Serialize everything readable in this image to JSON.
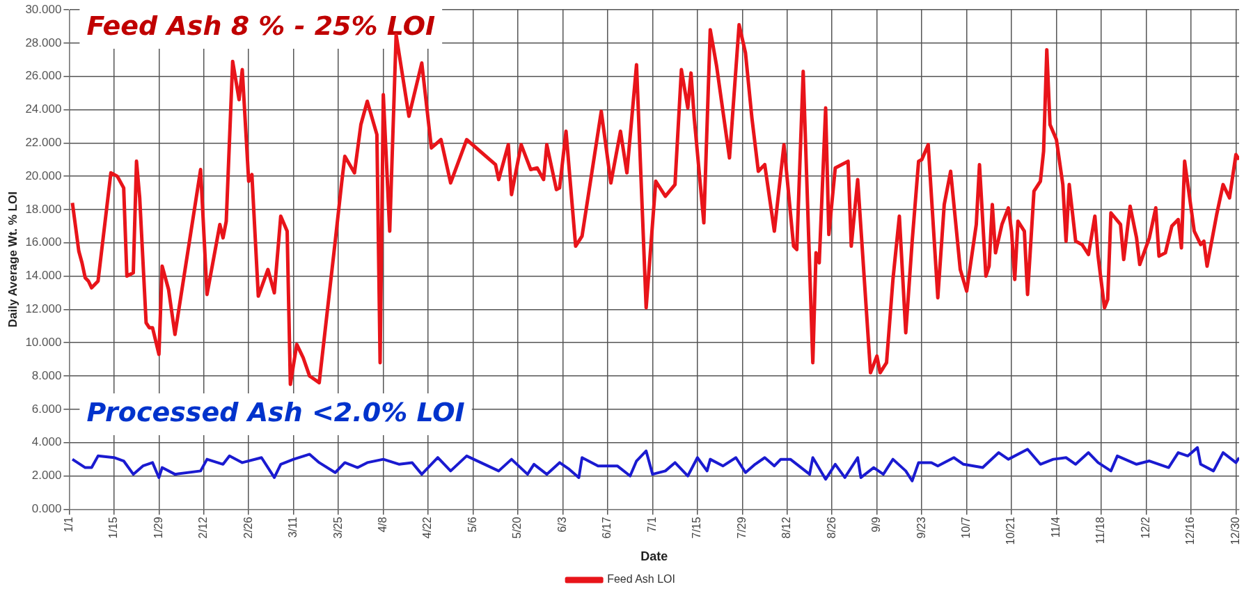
{
  "chart_data": {
    "type": "line",
    "xlabel": "Date",
    "ylabel": "Daily Average Wt. % LOI",
    "annotations": [
      "Feed Ash 8 % - 25% LOI",
      "Processed Ash <2.0% LOI"
    ],
    "xlim": [
      "--01-01",
      "--12-31"
    ],
    "xticks": [
      {
        "value": "--01-01",
        "label": "1/1"
      },
      {
        "value": "--01-15",
        "label": "1/15"
      },
      {
        "value": "--01-29",
        "label": "1/29"
      },
      {
        "value": "--02-12",
        "label": "2/12"
      },
      {
        "value": "--02-26",
        "label": "2/26"
      },
      {
        "value": "--03-11",
        "label": "3/11"
      },
      {
        "value": "--03-25",
        "label": "3/25"
      },
      {
        "value": "--04-08",
        "label": "4/8"
      },
      {
        "value": "--04-22",
        "label": "4/22"
      },
      {
        "value": "--05-06",
        "label": "5/6"
      },
      {
        "value": "--05-20",
        "label": "5/20"
      },
      {
        "value": "--06-03",
        "label": "6/3"
      },
      {
        "value": "--06-17",
        "label": "6/17"
      },
      {
        "value": "--07-01",
        "label": "7/1"
      },
      {
        "value": "--07-15",
        "label": "7/15"
      },
      {
        "value": "--07-29",
        "label": "7/29"
      },
      {
        "value": "--08-12",
        "label": "8/12"
      },
      {
        "value": "--08-26",
        "label": "8/26"
      },
      {
        "value": "--09-09",
        "label": "9/9"
      },
      {
        "value": "--09-23",
        "label": "9/23"
      },
      {
        "value": "--10-07",
        "label": "10/7"
      },
      {
        "value": "--10-21",
        "label": "10/21"
      },
      {
        "value": "--11-04",
        "label": "11/4"
      },
      {
        "value": "--11-18",
        "label": "11/18"
      },
      {
        "value": "--12-02",
        "label": "12/2"
      },
      {
        "value": "--12-16",
        "label": "12/16"
      },
      {
        "value": "--12-30",
        "label": "12/30"
      }
    ],
    "ylim": [
      0,
      30
    ],
    "yticks": [
      {
        "value": 0,
        "label": "0.000"
      },
      {
        "value": 2,
        "label": "2.000"
      },
      {
        "value": 4,
        "label": "4.000"
      },
      {
        "value": 6,
        "label": "6.000"
      },
      {
        "value": 8,
        "label": "8.000"
      },
      {
        "value": 10,
        "label": "10.000"
      },
      {
        "value": 12,
        "label": "12.000"
      },
      {
        "value": 14,
        "label": "14.000"
      },
      {
        "value": 16,
        "label": "16.000"
      },
      {
        "value": 18,
        "label": "18.000"
      },
      {
        "value": 20,
        "label": "20.000"
      },
      {
        "value": 22,
        "label": "22.000"
      },
      {
        "value": 24,
        "label": "24.000"
      },
      {
        "value": 26,
        "label": "26.000"
      },
      {
        "value": 28,
        "label": "28.000"
      },
      {
        "value": 30,
        "label": "30.000"
      }
    ],
    "grid": true,
    "legend": "bottom",
    "marker": "none",
    "line_style": "solid",
    "series": [
      {
        "name": "Feed Ash LOI",
        "color": "#e8141a",
        "x": [
          "--01-02",
          "--01-04",
          "--01-05",
          "--01-06",
          "--01-07",
          "--01-08",
          "--01-10",
          "--01-14",
          "--01-16",
          "--01-18",
          "--01-19",
          "--01-21",
          "--01-22",
          "--01-23",
          "--01-25",
          "--01-26",
          "--01-27",
          "--01-29",
          "--01-30",
          "--02-01",
          "--02-03",
          "--02-11",
          "--02-13",
          "--02-17",
          "--02-18",
          "--02-19",
          "--02-21",
          "--02-23",
          "--02-24",
          "--02-26",
          "--02-27",
          "--02-29",
          "--03-03",
          "--03-05",
          "--03-07",
          "--03-09",
          "--03-10",
          "--03-12",
          "--03-14",
          "--03-16",
          "--03-19",
          "--03-24",
          "--03-26",
          "--03-27",
          "--03-30",
          "--04-01",
          "--04-03",
          "--04-06",
          "--04-07",
          "--04-08",
          "--04-10",
          "--04-12",
          "--04-16",
          "--04-20",
          "--04-23",
          "--04-26",
          "--04-29",
          "--05-04",
          "--05-13",
          "--05-14",
          "--05-17",
          "--05-18",
          "--05-21",
          "--05-24",
          "--05-26",
          "--05-28",
          "--05-29",
          "--06-01",
          "--06-02",
          "--06-04",
          "--06-07",
          "--06-09",
          "--06-15",
          "--06-18",
          "--06-21",
          "--06-23",
          "--06-26",
          "--06-29",
          "--07-02",
          "--07-05",
          "--07-08",
          "--07-10",
          "--07-12",
          "--07-13",
          "--07-14",
          "--07-17",
          "--07-19",
          "--07-21",
          "--07-25",
          "--07-28",
          "--07-30",
          "--08-01",
          "--08-03",
          "--08-05",
          "--08-08",
          "--08-11",
          "--08-14",
          "--08-15",
          "--08-17",
          "--08-20",
          "--08-21",
          "--08-22",
          "--08-24",
          "--08-25",
          "--08-27",
          "--08-31",
          "--09-01",
          "--09-03",
          "--09-07",
          "--09-09",
          "--09-10",
          "--09-12",
          "--09-14",
          "--09-16",
          "--09-18",
          "--09-20",
          "--09-22",
          "--09-23",
          "--09-25",
          "--09-28",
          "--09-30",
          "--10-02",
          "--10-05",
          "--10-07",
          "--10-10",
          "--10-11",
          "--10-13",
          "--10-14",
          "--10-15",
          "--10-16",
          "--10-18",
          "--10-20",
          "--10-21",
          "--10-22",
          "--10-23",
          "--10-25",
          "--10-26",
          "--10-28",
          "--10-30",
          "--10-31",
          "--11-01",
          "--11-02",
          "--11-04",
          "--11-06",
          "--11-07",
          "--11-08",
          "--11-10",
          "--11-12",
          "--11-14",
          "--11-16",
          "--11-17",
          "--11-19",
          "--11-20",
          "--11-21",
          "--11-24",
          "--11-25",
          "--11-27",
          "--11-29",
          "--11-30",
          "--12-03",
          "--12-05",
          "--12-06",
          "--12-08",
          "--12-10",
          "--12-12",
          "--12-13",
          "--12-14",
          "--12-17",
          "--12-19",
          "--12-20",
          "--12-21",
          "--12-24",
          "--12-26",
          "--12-28",
          "--12-30",
          "--12-31"
        ],
        "values": [
          18.4,
          15.5,
          14.8,
          13.9,
          13.7,
          13.3,
          13.7,
          20.2,
          20.0,
          19.3,
          14.0,
          14.2,
          20.9,
          18.7,
          11.2,
          10.9,
          10.9,
          9.3,
          14.6,
          13.2,
          10.5,
          20.4,
          12.9,
          17.1,
          16.3,
          17.3,
          26.9,
          24.6,
          26.4,
          19.7,
          20.1,
          12.8,
          14.4,
          13.0,
          17.6,
          16.7,
          7.5,
          9.9,
          9.1,
          8.0,
          7.6,
          16.1,
          19.6,
          21.2,
          20.2,
          23.1,
          24.5,
          22.5,
          8.8,
          24.9,
          16.7,
          28.5,
          23.6,
          26.8,
          21.7,
          22.2,
          19.6,
          22.2,
          20.7,
          19.8,
          21.9,
          18.9,
          21.9,
          20.4,
          20.5,
          19.8,
          21.9,
          19.2,
          19.3,
          22.7,
          15.8,
          16.4,
          23.9,
          19.6,
          22.7,
          20.2,
          26.7,
          12.1,
          19.7,
          18.8,
          19.5,
          26.4,
          24.1,
          26.2,
          23.5,
          17.2,
          28.8,
          26.6,
          21.1,
          29.1,
          27.4,
          23.5,
          20.3,
          20.7,
          16.7,
          21.9,
          15.8,
          15.6,
          26.3,
          8.8,
          15.4,
          14.8,
          24.1,
          16.5,
          20.5,
          20.9,
          15.8,
          19.8,
          8.2,
          9.2,
          8.2,
          8.8,
          13.8,
          17.6,
          10.6,
          16.1,
          20.9,
          21.0,
          21.9,
          12.7,
          18.3,
          20.3,
          14.4,
          13.1,
          17.1,
          20.7,
          14.0,
          14.6,
          18.3,
          15.4,
          17.1,
          18.1,
          16.7,
          13.8,
          17.3,
          16.7,
          12.9,
          19.1,
          19.7,
          21.5,
          27.6,
          23.1,
          22.2,
          19.5,
          16.1,
          19.5,
          16.1,
          15.9,
          15.3,
          17.6,
          15.2,
          12.1,
          12.6,
          17.8,
          17.1,
          15.0,
          18.2,
          16.3,
          14.7,
          16.3,
          18.1,
          15.2,
          15.4,
          17.0,
          17.4,
          15.7,
          20.9,
          16.7,
          15.9,
          16.1,
          14.6,
          17.7,
          19.5,
          18.7,
          21.3,
          21.0
        ]
      },
      {
        "color": "#1a1ad0",
        "x": [
          "--01-02",
          "--01-06",
          "--01-08",
          "--01-10",
          "--01-15",
          "--01-18",
          "--01-21",
          "--01-24",
          "--01-27",
          "--01-29",
          "--01-30",
          "--02-03",
          "--02-11",
          "--02-13",
          "--02-18",
          "--02-20",
          "--02-24",
          "--03-01",
          "--03-05",
          "--03-07",
          "--03-11",
          "--03-16",
          "--03-19",
          "--03-24",
          "--03-27",
          "--03-31",
          "--04-03",
          "--04-08",
          "--04-13",
          "--04-17",
          "--04-20",
          "--04-25",
          "--04-29",
          "--05-04",
          "--05-14",
          "--05-18",
          "--05-23",
          "--05-25",
          "--05-29",
          "--06-02",
          "--06-05",
          "--06-08",
          "--06-09",
          "--06-14",
          "--06-20",
          "--06-24",
          "--06-26",
          "--06-29",
          "--07-01",
          "--07-05",
          "--07-08",
          "--07-12",
          "--07-15",
          "--07-18",
          "--07-19",
          "--07-23",
          "--07-27",
          "--07-30",
          "--08-02",
          "--08-05",
          "--08-08",
          "--08-10",
          "--08-13",
          "--08-19",
          "--08-20",
          "--08-24",
          "--08-27",
          "--08-30",
          "--09-03",
          "--09-04",
          "--09-08",
          "--09-11",
          "--09-14",
          "--09-18",
          "--09-20",
          "--09-22",
          "--09-26",
          "--09-28",
          "--10-03",
          "--10-06",
          "--10-12",
          "--10-17",
          "--10-20",
          "--10-26",
          "--10-30",
          "--11-03",
          "--11-07",
          "--11-10",
          "--11-14",
          "--11-17",
          "--11-21",
          "--11-23",
          "--11-29",
          "--12-03",
          "--12-09",
          "--12-12",
          "--12-15",
          "--12-18",
          "--12-19",
          "--12-23",
          "--12-26",
          "--12-30",
          "--12-31"
        ],
        "values": [
          3.0,
          2.5,
          2.5,
          3.2,
          3.1,
          2.9,
          2.1,
          2.6,
          2.8,
          1.9,
          2.5,
          2.1,
          2.3,
          3.0,
          2.7,
          3.2,
          2.8,
          3.1,
          1.9,
          2.7,
          3.0,
          3.3,
          2.8,
          2.2,
          2.8,
          2.5,
          2.8,
          3.0,
          2.7,
          2.8,
          2.1,
          3.1,
          2.3,
          3.2,
          2.3,
          3.0,
          2.1,
          2.7,
          2.1,
          2.8,
          2.4,
          1.9,
          3.1,
          2.6,
          2.6,
          2.0,
          2.9,
          3.5,
          2.1,
          2.3,
          2.8,
          2.0,
          3.1,
          2.3,
          3.0,
          2.6,
          3.1,
          2.2,
          2.7,
          3.1,
          2.6,
          3.0,
          3.0,
          2.1,
          3.1,
          1.8,
          2.7,
          1.9,
          3.1,
          1.9,
          2.5,
          2.1,
          3.0,
          2.3,
          1.7,
          2.8,
          2.8,
          2.6,
          3.1,
          2.7,
          2.5,
          3.4,
          3.0,
          3.6,
          2.7,
          3.0,
          3.1,
          2.7,
          3.4,
          2.8,
          2.3,
          3.2,
          2.7,
          2.9,
          2.5,
          3.4,
          3.2,
          3.7,
          2.7,
          2.3,
          3.4,
          2.8,
          3.1
        ]
      }
    ]
  }
}
